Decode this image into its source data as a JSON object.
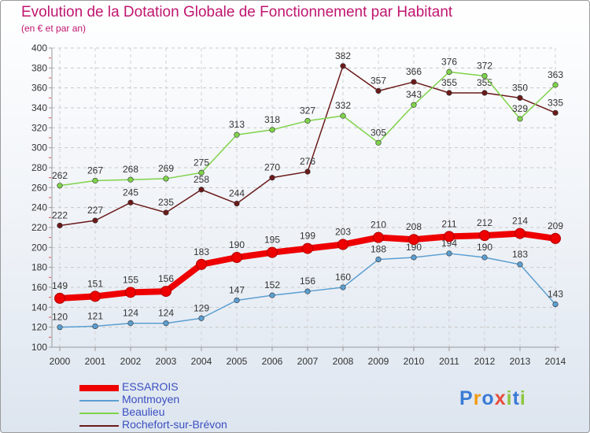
{
  "title": "Evolution de la Dotation Globale de Fonctionnement par Habitant",
  "subtitle": "(en € et par an)",
  "logo": "Proxiti",
  "chart_data": {
    "type": "line",
    "categories": [
      "2000",
      "2001",
      "2002",
      "2003",
      "2004",
      "2005",
      "2006",
      "2007",
      "2008",
      "2009",
      "2010",
      "2011",
      "2012",
      "2013",
      "2014"
    ],
    "ylim": [
      100,
      400
    ],
    "yticks": [
      100,
      120,
      140,
      160,
      180,
      200,
      220,
      240,
      260,
      280,
      300,
      320,
      340,
      360,
      380,
      400
    ],
    "grid": true,
    "legend_position": "bottom-left",
    "series": [
      {
        "name": "ESSAROIS",
        "color": "#ee0000",
        "values": [
          149,
          151,
          155,
          156,
          183,
          190,
          195,
          199,
          203,
          210,
          208,
          211,
          212,
          214,
          209
        ]
      },
      {
        "name": "Montmoyen",
        "color": "#5b9ed0",
        "values": [
          120,
          121,
          124,
          124,
          129,
          147,
          152,
          156,
          160,
          188,
          190,
          194,
          190,
          183,
          143
        ]
      },
      {
        "name": "Beaulieu",
        "color": "#7fd34a",
        "values": [
          262,
          267,
          268,
          269,
          275,
          313,
          318,
          327,
          332,
          305,
          343,
          376,
          372,
          329,
          363
        ]
      },
      {
        "name": "Rochefort-sur-Brévon",
        "color": "#6b1a1a",
        "values": [
          222,
          227,
          245,
          235,
          258,
          244,
          270,
          276,
          382,
          357,
          366,
          355,
          355,
          350,
          335
        ]
      }
    ]
  }
}
